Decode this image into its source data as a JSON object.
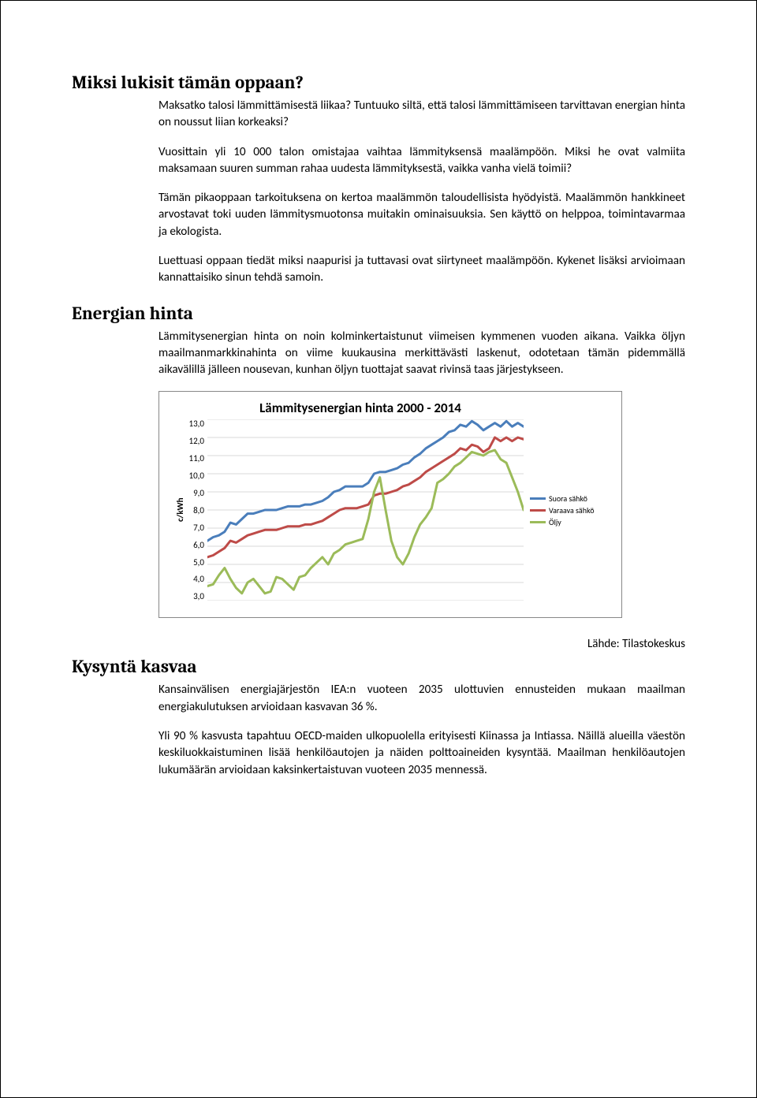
{
  "section1": {
    "heading": "Miksi lukisit tämän oppaan?",
    "p1": "Maksatko talosi lämmittämisestä liikaa? Tuntuuko siltä, että talosi lämmittämiseen tarvittavan energian hinta on noussut liian korkeaksi?",
    "p2": "Vuosittain yli 10 000 talon omistajaa vaihtaa lämmityksensä maalämpöön. Miksi he ovat valmiita maksamaan suuren summan rahaa uudesta lämmityksestä, vaikka vanha vielä toimii?",
    "p3": "Tämän pikaoppaan tarkoituksena on kertoa maalämmön taloudellisista hyödyistä. Maalämmön hankkineet arvostavat toki uuden lämmitysmuotonsa muitakin ominaisuuksia. Sen käyttö on helppoa, toimintavarmaa ja ekologista.",
    "p4": "Luettuasi oppaan tiedät miksi naapurisi ja tuttavasi ovat siirtyneet maalämpöön. Kykenet lisäksi arvioimaan kannattaisiko sinun tehdä samoin."
  },
  "section2": {
    "heading": "Energian hinta",
    "p1": "Lämmitysenergian hinta on noin kolminkertaistunut viimeisen kymmenen vuoden aikana. Vaikka öljyn maailmanmarkkinahinta on viime kuukausina merkittävästi laskenut, odotetaan tämän pidemmällä aikavälillä jälleen nousevan, kunhan öljyn tuottajat saavat rivinsä taas järjestykseen."
  },
  "chart": {
    "type": "line",
    "title": "Lämmitysenergian hinta 2000 - 2014",
    "y_axis_label": "c/kWh",
    "y_ticks": [
      "13,0",
      "12,0",
      "11,0",
      "10,0",
      "9,0",
      "8,0",
      "7,0",
      "6,0",
      "5,0",
      "4,0",
      "3,0"
    ],
    "ylim": [
      3.0,
      13.0
    ],
    "background_color": "#ffffff",
    "grid_color": "#d9d9d9",
    "line_width": 3,
    "series": [
      {
        "name": "Suora sähkö",
        "color": "#4a7ebb",
        "values": [
          6.3,
          6.5,
          6.6,
          6.8,
          7.3,
          7.2,
          7.5,
          7.8,
          7.8,
          7.9,
          8.0,
          8.0,
          8.0,
          8.1,
          8.2,
          8.2,
          8.2,
          8.3,
          8.3,
          8.4,
          8.5,
          8.7,
          9.0,
          9.1,
          9.3,
          9.3,
          9.3,
          9.3,
          9.5,
          10.0,
          10.1,
          10.1,
          10.2,
          10.3,
          10.5,
          10.6,
          10.9,
          11.1,
          11.4,
          11.6,
          11.8,
          12.0,
          12.3,
          12.4,
          12.7,
          12.6,
          12.9,
          12.7,
          12.4,
          12.6,
          12.8,
          12.6,
          12.9,
          12.6,
          12.8,
          12.6
        ]
      },
      {
        "name": "Varaava sähkö",
        "color": "#be4b48",
        "values": [
          5.4,
          5.5,
          5.7,
          5.9,
          6.3,
          6.2,
          6.4,
          6.6,
          6.7,
          6.8,
          6.9,
          6.9,
          6.9,
          7.0,
          7.1,
          7.1,
          7.1,
          7.2,
          7.2,
          7.3,
          7.4,
          7.6,
          7.8,
          8.0,
          8.1,
          8.1,
          8.1,
          8.2,
          8.3,
          8.8,
          8.9,
          8.9,
          9.0,
          9.1,
          9.3,
          9.4,
          9.6,
          9.8,
          10.1,
          10.3,
          10.5,
          10.7,
          10.9,
          11.1,
          11.4,
          11.3,
          11.6,
          11.5,
          11.2,
          11.4,
          12.0,
          11.8,
          12.0,
          11.8,
          12.0,
          11.9
        ]
      },
      {
        "name": "Öljy",
        "color": "#9bbb59",
        "values": [
          3.8,
          3.9,
          4.4,
          4.8,
          4.2,
          3.7,
          3.4,
          4.0,
          4.2,
          3.8,
          3.4,
          3.5,
          4.3,
          4.2,
          3.9,
          3.6,
          4.3,
          4.4,
          4.8,
          5.1,
          5.4,
          5.0,
          5.6,
          5.8,
          6.1,
          6.2,
          6.3,
          6.4,
          7.5,
          9.0,
          9.8,
          8.0,
          6.3,
          5.4,
          5.0,
          5.6,
          6.5,
          7.2,
          7.6,
          8.1,
          9.5,
          9.7,
          10.0,
          10.4,
          10.6,
          10.9,
          11.2,
          11.1,
          11.0,
          11.2,
          11.3,
          10.8,
          10.6,
          9.8,
          9.0,
          8.0
        ]
      }
    ],
    "legend": [
      {
        "label": "Suora sähkö",
        "color": "#4a7ebb"
      },
      {
        "label": "Varaava sähkö",
        "color": "#be4b48"
      },
      {
        "label": "Öljy",
        "color": "#9bbb59"
      }
    ]
  },
  "source": "Lähde: Tilastokeskus",
  "section3": {
    "heading": "Kysyntä kasvaa",
    "p1": "Kansainvälisen energiajärjestön IEA:n vuoteen 2035 ulottuvien ennusteiden mukaan maailman energiakulutuksen arvioidaan kasvavan 36 %.",
    "p2": "Yli 90 % kasvusta tapahtuu OECD-maiden ulkopuolella erityisesti Kiinassa ja Intiassa. Näillä alueilla väestön keskiluokkaistuminen lisää henkilöautojen ja näiden polttoaineiden kysyntää. Maailman henkilöautojen lukumäärän arvioidaan kaksinkertaistuvan vuoteen 2035 mennessä."
  }
}
